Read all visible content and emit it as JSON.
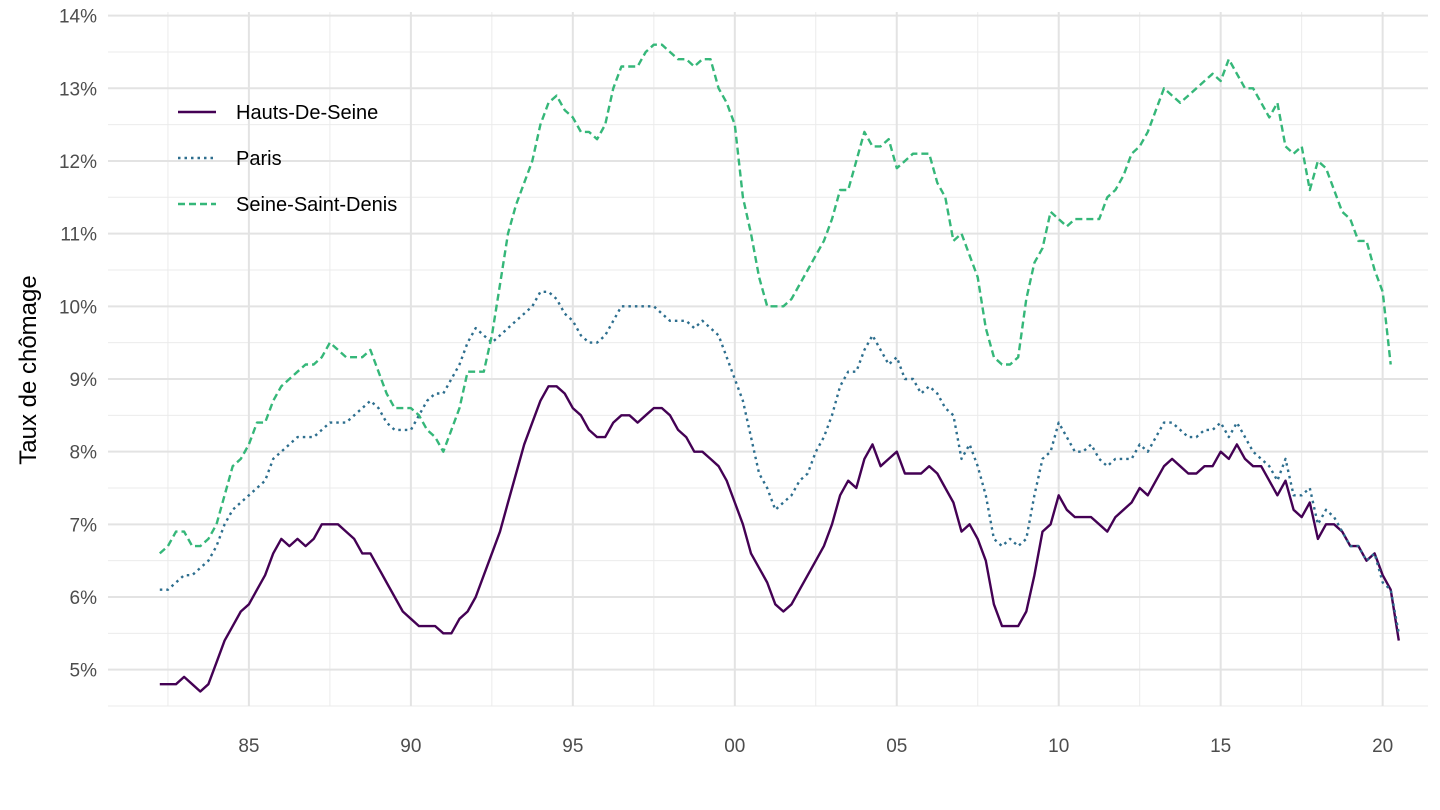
{
  "chart_data": {
    "type": "line",
    "title": "",
    "xlabel": "",
    "ylabel": "Taux de chômage",
    "x_ticks": [
      1985,
      1990,
      1995,
      2000,
      2005,
      2010,
      2015,
      2020
    ],
    "x_tick_labels": [
      "85",
      "90",
      "95",
      "00",
      "05",
      "10",
      "15",
      "20"
    ],
    "y_ticks": [
      5,
      6,
      7,
      8,
      9,
      10,
      11,
      12,
      13,
      14
    ],
    "y_tick_labels": [
      "5%",
      "6%",
      "7%",
      "8%",
      "9%",
      "10%",
      "11%",
      "12%",
      "13%",
      "14%"
    ],
    "xlim": [
      1980.65,
      1997.55
    ],
    "ylim": [
      4.5,
      14.05
    ],
    "grid": true,
    "legend_position": "top-left",
    "x_start": 1982.25,
    "x_step": 0.25,
    "series": [
      {
        "name": "Hauts-De-Seine",
        "color": "#440154",
        "dash": "solid",
        "values": [
          4.8,
          4.8,
          4.8,
          4.9,
          4.8,
          4.7,
          4.8,
          5.1,
          5.4,
          5.6,
          5.8,
          5.9,
          6.1,
          6.3,
          6.6,
          6.8,
          6.7,
          6.8,
          6.7,
          6.8,
          7.0,
          7.0,
          7.0,
          6.9,
          6.8,
          6.6,
          6.6,
          6.4,
          6.2,
          6.0,
          5.8,
          5.7,
          5.6,
          5.6,
          5.6,
          5.5,
          5.5,
          5.7,
          5.8,
          6.0,
          6.3,
          6.6,
          6.9,
          7.3,
          7.7,
          8.1,
          8.4,
          8.7,
          8.9,
          8.9,
          8.8,
          8.6,
          8.5,
          8.3,
          8.2,
          8.2,
          8.4,
          8.5,
          8.5,
          8.4,
          8.5,
          8.6,
          8.6,
          8.5,
          8.3,
          8.2,
          8.0,
          8.0,
          7.9,
          7.8,
          7.6,
          7.3,
          7.0,
          6.6,
          6.4,
          6.2,
          5.9,
          5.8,
          5.9,
          6.1,
          6.3,
          6.5,
          6.7,
          7.0,
          7.4,
          7.6,
          7.5,
          7.9,
          8.1,
          7.8,
          7.9,
          8.0,
          7.7,
          7.7,
          7.7,
          7.8,
          7.7,
          7.5,
          7.3,
          6.9,
          7.0,
          6.8,
          6.5,
          5.9,
          5.6,
          5.6,
          5.6,
          5.8,
          6.3,
          6.9,
          7.0,
          7.4,
          7.2,
          7.1,
          7.1,
          7.1,
          7.0,
          6.9,
          7.1,
          7.2,
          7.3,
          7.5,
          7.4,
          7.6,
          7.8,
          7.9,
          7.8,
          7.7,
          7.7,
          7.8,
          7.8,
          8.0,
          7.9,
          8.1,
          7.9,
          7.8,
          7.8,
          7.6,
          7.4,
          7.6,
          7.2,
          7.1,
          7.3,
          6.8,
          7.0,
          7.0,
          6.9,
          6.7,
          6.7,
          6.5,
          6.6,
          6.3,
          6.1,
          5.4
        ]
      },
      {
        "name": "Paris",
        "color": "#2d6e8e",
        "dash": "dotted",
        "values": [
          6.1,
          6.1,
          6.2,
          6.3,
          6.3,
          6.4,
          6.5,
          6.7,
          7.0,
          7.2,
          7.3,
          7.4,
          7.5,
          7.6,
          7.9,
          8.0,
          8.1,
          8.2,
          8.2,
          8.2,
          8.3,
          8.4,
          8.4,
          8.4,
          8.5,
          8.6,
          8.7,
          8.6,
          8.4,
          8.3,
          8.3,
          8.3,
          8.5,
          8.7,
          8.8,
          8.8,
          9.0,
          9.2,
          9.5,
          9.7,
          9.6,
          9.5,
          9.6,
          9.7,
          9.8,
          9.9,
          10.0,
          10.2,
          10.2,
          10.1,
          9.9,
          9.8,
          9.6,
          9.5,
          9.5,
          9.6,
          9.8,
          10.0,
          10.0,
          10.0,
          10.0,
          10.0,
          9.9,
          9.8,
          9.8,
          9.8,
          9.7,
          9.8,
          9.7,
          9.6,
          9.3,
          9.0,
          8.7,
          8.2,
          7.7,
          7.5,
          7.2,
          7.3,
          7.4,
          7.6,
          7.7,
          8.0,
          8.2,
          8.5,
          8.9,
          9.1,
          9.1,
          9.4,
          9.6,
          9.4,
          9.2,
          9.3,
          9.0,
          9.0,
          8.8,
          8.9,
          8.8,
          8.6,
          8.5,
          7.9,
          8.1,
          7.8,
          7.4,
          6.8,
          6.7,
          6.8,
          6.7,
          6.8,
          7.4,
          7.9,
          8.0,
          8.4,
          8.2,
          8.0,
          8.0,
          8.1,
          7.9,
          7.8,
          7.9,
          7.9,
          7.9,
          8.1,
          8.0,
          8.2,
          8.4,
          8.4,
          8.3,
          8.2,
          8.2,
          8.3,
          8.3,
          8.4,
          8.2,
          8.4,
          8.2,
          8.0,
          7.9,
          7.8,
          7.6,
          7.9,
          7.4,
          7.4,
          7.5,
          7.0,
          7.2,
          7.1,
          6.9,
          6.7,
          6.7,
          6.5,
          6.6,
          6.2,
          6.1,
          5.5
        ]
      },
      {
        "name": "Seine-Saint-Denis",
        "color": "#35b779",
        "dash": "dashed",
        "values": [
          6.6,
          6.7,
          6.9,
          6.9,
          6.7,
          6.7,
          6.8,
          7.0,
          7.4,
          7.8,
          7.9,
          8.1,
          8.4,
          8.4,
          8.7,
          8.9,
          9.0,
          9.1,
          9.2,
          9.2,
          9.3,
          9.5,
          9.4,
          9.3,
          9.3,
          9.3,
          9.4,
          9.1,
          8.8,
          8.6,
          8.6,
          8.6,
          8.5,
          8.3,
          8.2,
          8.0,
          8.3,
          8.6,
          9.1,
          9.1,
          9.1,
          9.6,
          10.3,
          11.0,
          11.4,
          11.7,
          12.0,
          12.5,
          12.8,
          12.9,
          12.7,
          12.6,
          12.4,
          12.4,
          12.3,
          12.5,
          13.0,
          13.3,
          13.3,
          13.3,
          13.5,
          13.6,
          13.6,
          13.5,
          13.4,
          13.4,
          13.3,
          13.4,
          13.4,
          13.0,
          12.8,
          12.5,
          11.5,
          11.0,
          10.4,
          10.0,
          10.0,
          10.0,
          10.1,
          10.3,
          10.5,
          10.7,
          10.9,
          11.2,
          11.6,
          11.6,
          12.0,
          12.4,
          12.2,
          12.2,
          12.3,
          11.9,
          12.0,
          12.1,
          12.1,
          12.1,
          11.7,
          11.5,
          10.9,
          11.0,
          10.7,
          10.4,
          9.7,
          9.3,
          9.2,
          9.2,
          9.3,
          10.1,
          10.6,
          10.8,
          11.3,
          11.2,
          11.1,
          11.2,
          11.2,
          11.2,
          11.2,
          11.5,
          11.6,
          11.8,
          12.1,
          12.2,
          12.4,
          12.7,
          13.0,
          12.9,
          12.8,
          12.9,
          13.0,
          13.1,
          13.2,
          13.1,
          13.4,
          13.2,
          13.0,
          13.0,
          12.8,
          12.6,
          12.8,
          12.2,
          12.1,
          12.2,
          11.6,
          12.0,
          11.9,
          11.6,
          11.3,
          11.2,
          10.9,
          10.9,
          10.5,
          10.2,
          9.2
        ]
      }
    ]
  }
}
